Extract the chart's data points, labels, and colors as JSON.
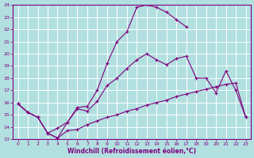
{
  "xlabel": "Windchill (Refroidissement éolien,°C)",
  "background_color": "#b2e0e0",
  "grid_color": "#ffffff",
  "line_color": "#800080",
  "xlim": [
    -0.5,
    23.5
  ],
  "ylim": [
    13,
    24
  ],
  "xticks": [
    0,
    1,
    2,
    3,
    4,
    5,
    6,
    7,
    8,
    9,
    10,
    11,
    12,
    13,
    14,
    15,
    16,
    17,
    18,
    19,
    20,
    21,
    22,
    23
  ],
  "yticks": [
    13,
    14,
    15,
    16,
    17,
    18,
    19,
    20,
    21,
    22,
    23,
    24
  ],
  "line_upper_x": [
    0,
    1,
    2,
    3,
    4,
    5,
    6,
    7,
    8,
    9,
    10,
    11,
    12,
    13,
    14,
    15,
    16,
    17
  ],
  "line_upper_y": [
    15.9,
    15.2,
    14.8,
    13.5,
    13.1,
    14.4,
    15.6,
    15.7,
    17.0,
    19.2,
    21.0,
    21.8,
    23.8,
    24.0,
    23.8,
    23.4,
    22.8,
    22.2
  ],
  "line_mid_x": [
    0,
    1,
    2,
    3,
    4,
    5,
    6,
    7,
    8,
    9,
    10,
    11,
    12,
    13,
    14,
    15,
    16,
    17,
    18,
    19,
    20,
    21,
    22,
    23
  ],
  "line_mid_y": [
    15.9,
    15.2,
    14.8,
    13.5,
    13.9,
    14.4,
    15.5,
    15.3,
    16.1,
    17.4,
    18.0,
    18.8,
    19.5,
    20.0,
    19.5,
    19.1,
    19.6,
    19.8,
    18.0,
    18.0,
    16.8,
    18.6,
    17.0,
    14.8
  ],
  "line_lower_x": [
    0,
    1,
    2,
    3,
    4,
    5,
    6,
    7,
    8,
    9,
    10,
    11,
    12,
    13,
    14,
    15,
    16,
    17,
    18,
    19,
    20,
    21,
    22,
    23
  ],
  "line_lower_y": [
    15.9,
    15.2,
    14.8,
    13.5,
    13.1,
    13.7,
    13.8,
    14.2,
    14.5,
    14.8,
    15.0,
    15.3,
    15.5,
    15.8,
    16.0,
    16.2,
    16.5,
    16.7,
    16.9,
    17.1,
    17.3,
    17.5,
    17.6,
    14.8
  ]
}
